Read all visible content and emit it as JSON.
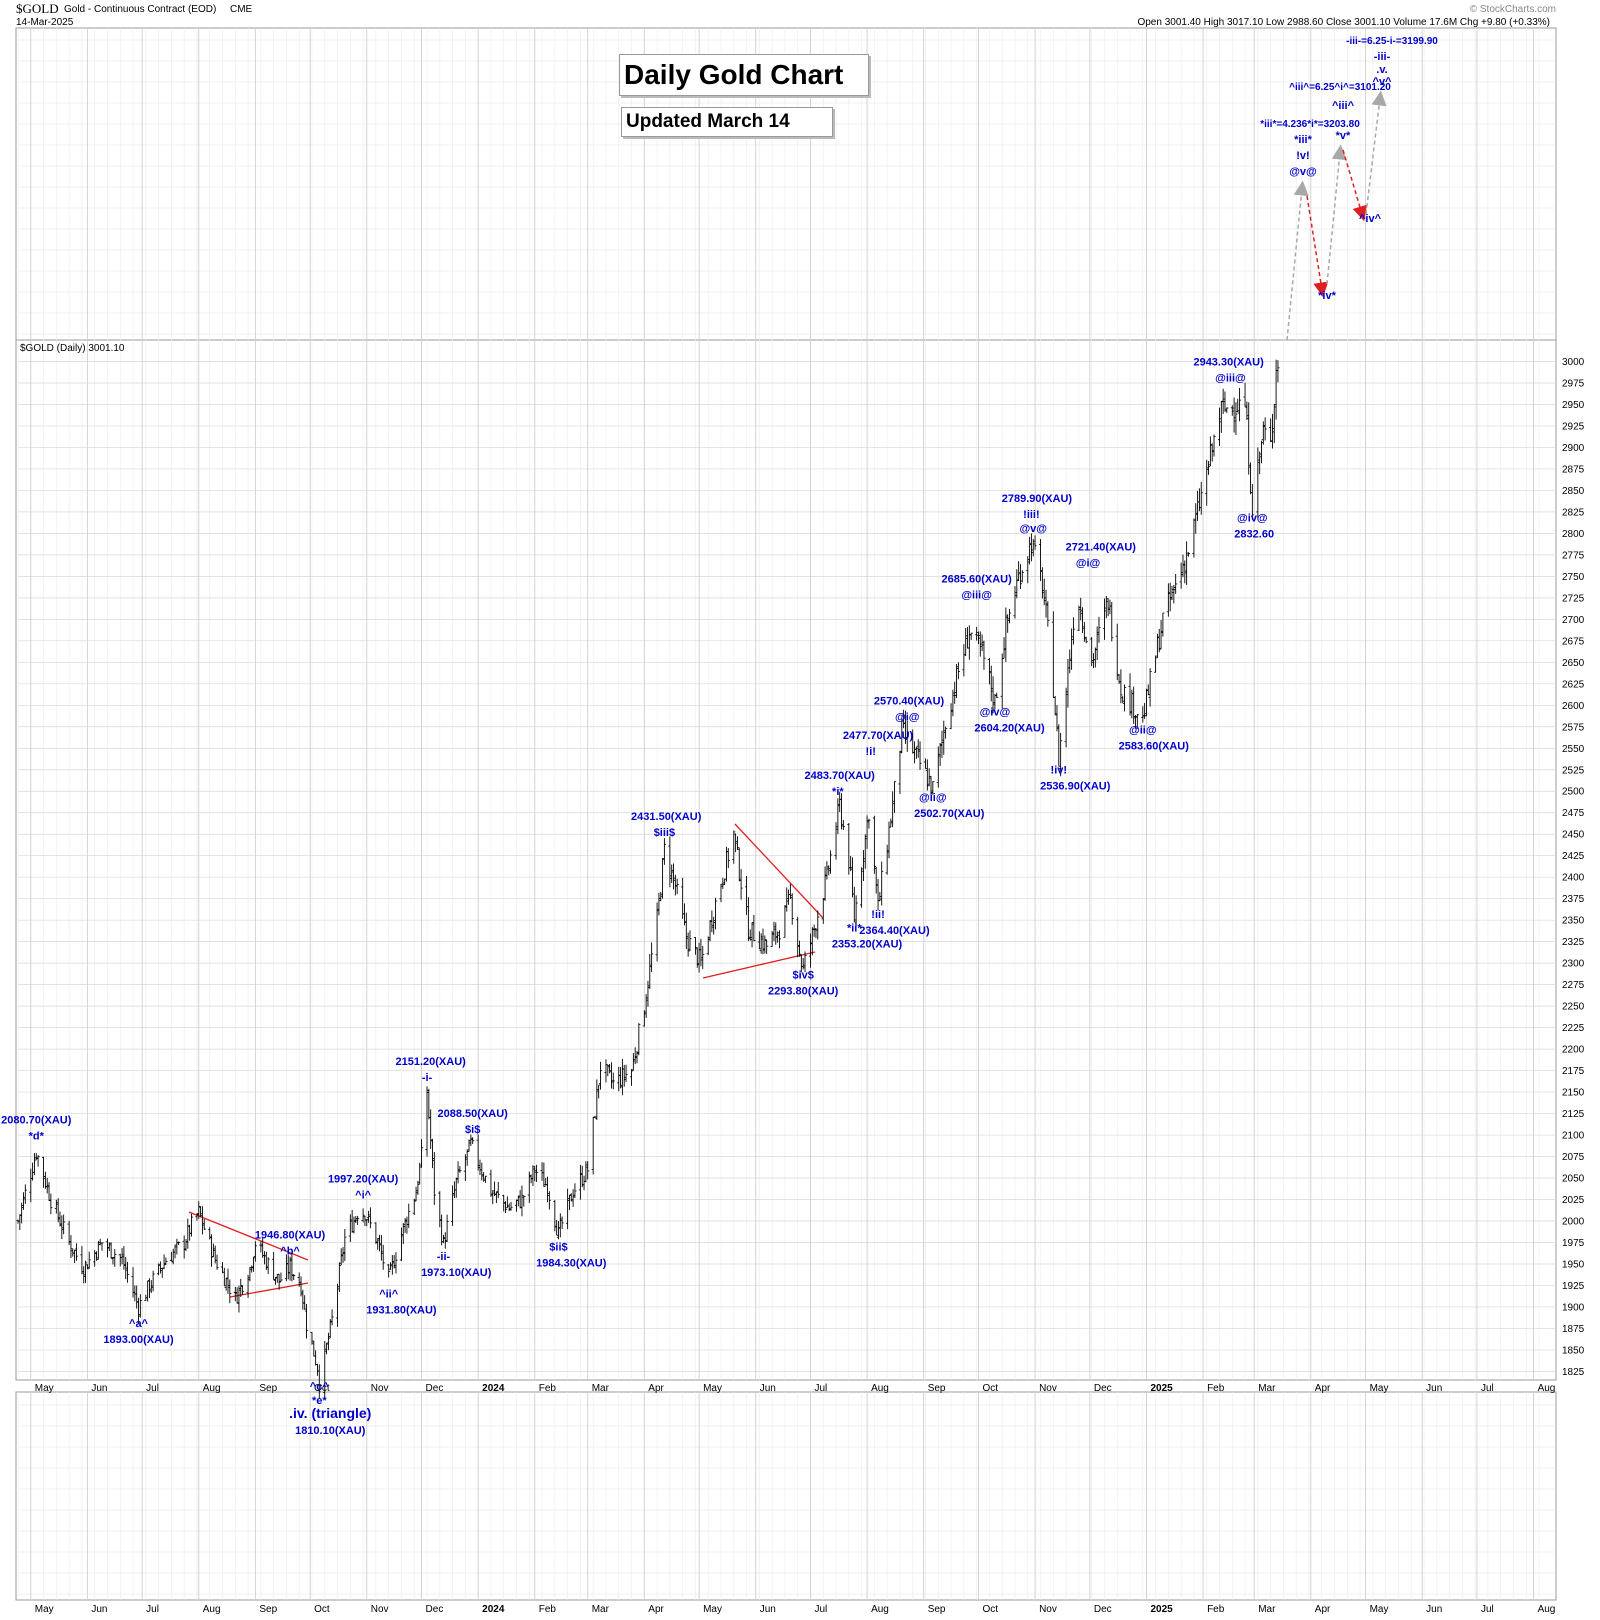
{
  "header": {
    "symbol": "$GOLD",
    "description": "Gold - Continuous Contract (EOD)",
    "exchange": "CME",
    "date": "14-Mar-2025",
    "ohlc_line": "Open 3001.40  High 3017.10  Low 2988.60  Close 3001.10  Volume 17.6M  Chg +9.80 (+0.33%)",
    "watermark": "© StockCharts.com",
    "legend": "$GOLD (Daily) 3001.10"
  },
  "title_box": {
    "title": "Daily Gold Chart",
    "subtitle": "Updated March 14"
  },
  "colors": {
    "annotation": "#0000cc",
    "bars": "#000000",
    "trendline": "#e02020",
    "projection_up": "#a8a8a8",
    "projection_down": "#e02020",
    "grid": "#d8d8d8"
  },
  "chart_data": {
    "type": "ohlc",
    "title": "Daily Gold Chart",
    "subtitle": "Updated March 14",
    "series_name": "$GOLD (Daily)",
    "last_close": 3001.1,
    "ylim": [
      1815,
      3025
    ],
    "y_ticks": [
      1825,
      1850,
      1875,
      1900,
      1925,
      1950,
      1975,
      2000,
      2025,
      2050,
      2075,
      2100,
      2125,
      2150,
      2175,
      2200,
      2225,
      2250,
      2275,
      2300,
      2325,
      2350,
      2375,
      2400,
      2425,
      2450,
      2475,
      2500,
      2525,
      2550,
      2575,
      2600,
      2625,
      2650,
      2675,
      2700,
      2725,
      2750,
      2775,
      2800,
      2825,
      2850,
      2875,
      2900,
      2925,
      2950,
      2975,
      3000
    ],
    "x_range": [
      "2023-04-24",
      "2025-08-10"
    ],
    "x_ticks": [
      {
        "label": "May",
        "date": "2023-05-01"
      },
      {
        "label": "Jun",
        "date": "2023-06-01"
      },
      {
        "label": "Jul",
        "date": "2023-07-01"
      },
      {
        "label": "Aug",
        "date": "2023-08-01"
      },
      {
        "label": "Sep",
        "date": "2023-09-01"
      },
      {
        "label": "Oct",
        "date": "2023-10-01"
      },
      {
        "label": "Nov",
        "date": "2023-11-01"
      },
      {
        "label": "Dec",
        "date": "2023-12-01"
      },
      {
        "label": "2024",
        "date": "2024-01-01",
        "bold": true
      },
      {
        "label": "Feb",
        "date": "2024-02-01"
      },
      {
        "label": "Mar",
        "date": "2024-03-01"
      },
      {
        "label": "Apr",
        "date": "2024-04-01"
      },
      {
        "label": "May",
        "date": "2024-05-01"
      },
      {
        "label": "Jun",
        "date": "2024-06-01"
      },
      {
        "label": "Jul",
        "date": "2024-07-01"
      },
      {
        "label": "Aug",
        "date": "2024-08-01"
      },
      {
        "label": "Sep",
        "date": "2024-09-01"
      },
      {
        "label": "Oct",
        "date": "2024-10-01"
      },
      {
        "label": "Nov",
        "date": "2024-11-01"
      },
      {
        "label": "Dec",
        "date": "2024-12-01"
      },
      {
        "label": "2025",
        "date": "2025-01-01",
        "bold": true
      },
      {
        "label": "Feb",
        "date": "2025-02-01"
      },
      {
        "label": "Mar",
        "date": "2025-03-01"
      },
      {
        "label": "Apr",
        "date": "2025-04-01"
      },
      {
        "label": "May",
        "date": "2025-05-01"
      },
      {
        "label": "Jun",
        "date": "2025-06-01"
      },
      {
        "label": "Jul",
        "date": "2025-07-01"
      },
      {
        "label": "Aug",
        "date": "2025-08-01"
      }
    ],
    "price_path": [
      [
        "2023-04-24",
        2000
      ],
      [
        "2023-05-04",
        2080.7
      ],
      [
        "2023-05-12",
        2025
      ],
      [
        "2023-05-22",
        1975
      ],
      [
        "2023-05-30",
        1945
      ],
      [
        "2023-06-09",
        1975
      ],
      [
        "2023-06-20",
        1955
      ],
      [
        "2023-06-29",
        1900
      ],
      [
        "2023-07-05",
        1925
      ],
      [
        "2023-07-14",
        1955
      ],
      [
        "2023-07-24",
        1975
      ],
      [
        "2023-07-28",
        1995
      ],
      [
        "2023-08-01",
        2010
      ],
      [
        "2023-08-10",
        1955
      ],
      [
        "2023-08-21",
        1910
      ],
      [
        "2023-08-29",
        1945
      ],
      [
        "2023-09-01",
        1975
      ],
      [
        "2023-09-08",
        1950
      ],
      [
        "2023-09-14",
        1930
      ],
      [
        "2023-09-20",
        1946.8
      ],
      [
        "2023-09-26",
        1925
      ],
      [
        "2023-09-29",
        1880
      ],
      [
        "2023-10-05",
        1830
      ],
      [
        "2023-10-06",
        1810.1
      ],
      [
        "2023-10-13",
        1885
      ],
      [
        "2023-10-20",
        1980
      ],
      [
        "2023-10-27",
        2010
      ],
      [
        "2023-10-31",
        2010
      ],
      [
        "2023-11-07",
        1975
      ],
      [
        "2023-11-13",
        1931.8
      ],
      [
        "2023-11-20",
        1985
      ],
      [
        "2023-11-28",
        2035
      ],
      [
        "2023-12-01",
        2075
      ],
      [
        "2023-12-04",
        2151.2
      ],
      [
        "2023-12-08",
        2035
      ],
      [
        "2023-12-13",
        1973.1
      ],
      [
        "2023-12-20",
        2045
      ],
      [
        "2023-12-28",
        2088.5
      ],
      [
        "2024-01-08",
        2035
      ],
      [
        "2024-01-18",
        2015
      ],
      [
        "2024-01-25",
        2025
      ],
      [
        "2024-02-01",
        2060
      ],
      [
        "2024-02-08",
        2040
      ],
      [
        "2024-02-14",
        1984.3
      ],
      [
        "2024-02-22",
        2035
      ],
      [
        "2024-03-01",
        2060
      ],
      [
        "2024-03-08",
        2180
      ],
      [
        "2024-03-15",
        2160
      ],
      [
        "2024-03-25",
        2175
      ],
      [
        "2024-04-01",
        2250
      ],
      [
        "2024-04-08",
        2350
      ],
      [
        "2024-04-12",
        2431.5
      ],
      [
        "2024-04-18",
        2390
      ],
      [
        "2024-04-24",
        2330
      ],
      [
        "2024-05-02",
        2300
      ],
      [
        "2024-05-10",
        2370
      ],
      [
        "2024-05-20",
        2450
      ],
      [
        "2024-05-28",
        2340
      ],
      [
        "2024-06-07",
        2320
      ],
      [
        "2024-06-14",
        2340
      ],
      [
        "2024-06-20",
        2375
      ],
      [
        "2024-06-26",
        2300
      ],
      [
        "2024-06-27",
        2293.8
      ],
      [
        "2024-07-03",
        2340
      ],
      [
        "2024-07-10",
        2400
      ],
      [
        "2024-07-17",
        2483.7
      ],
      [
        "2024-07-22",
        2420
      ],
      [
        "2024-07-25",
        2353.2
      ],
      [
        "2024-08-02",
        2477.7
      ],
      [
        "2024-08-07",
        2364.4
      ],
      [
        "2024-08-16",
        2500
      ],
      [
        "2024-08-20",
        2570.4
      ],
      [
        "2024-08-28",
        2540
      ],
      [
        "2024-09-06",
        2502.7
      ],
      [
        "2024-09-13",
        2580
      ],
      [
        "2024-09-20",
        2640
      ],
      [
        "2024-09-26",
        2685.6
      ],
      [
        "2024-10-03",
        2660
      ],
      [
        "2024-10-10",
        2604.2
      ],
      [
        "2024-10-16",
        2690
      ],
      [
        "2024-10-23",
        2750
      ],
      [
        "2024-10-30",
        2789.9
      ],
      [
        "2024-11-05",
        2740
      ],
      [
        "2024-11-10",
        2650
      ],
      [
        "2024-11-14",
        2536.9
      ],
      [
        "2024-11-22",
        2700
      ],
      [
        "2024-11-25",
        2721.4
      ],
      [
        "2024-12-02",
        2650
      ],
      [
        "2024-12-11",
        2721.4
      ],
      [
        "2024-12-18",
        2620
      ],
      [
        "2024-12-30",
        2583.6
      ],
      [
        "2025-01-10",
        2700
      ],
      [
        "2025-01-24",
        2780
      ],
      [
        "2025-02-04",
        2880
      ],
      [
        "2025-02-11",
        2943.3
      ],
      [
        "2025-02-20",
        2950
      ],
      [
        "2025-02-24",
        2950
      ],
      [
        "2025-02-28",
        2832.6
      ],
      [
        "2025-03-06",
        2920
      ],
      [
        "2025-03-10",
        2900
      ],
      [
        "2025-03-13",
        2990
      ],
      [
        "2025-03-14",
        3001.1
      ]
    ],
    "annotations": [
      {
        "text": "2080.70(XAU)",
        "date": "2023-05-04",
        "price": 2080.7,
        "dy": -28
      },
      {
        "text": "*d*",
        "date": "2023-05-04",
        "price": 2080.7,
        "dy": -12
      },
      {
        "text": "^a^",
        "date": "2023-06-29",
        "price": 1893,
        "dy": 14
      },
      {
        "text": "1893.00(XAU)",
        "date": "2023-06-29",
        "price": 1893,
        "dy": 30
      },
      {
        "text": "1946.80(XAU)",
        "date": "2023-09-20",
        "price": 1946.8,
        "dy": -28
      },
      {
        "text": "^b^",
        "date": "2023-09-20",
        "price": 1946.8,
        "dy": -12
      },
      {
        "text": "^c^",
        "date": "2023-10-06",
        "price": 1810.1,
        "dy": 6
      },
      {
        "text": "*e*",
        "date": "2023-10-06",
        "price": 1810.1,
        "dy": 20
      },
      {
        "text": ".iv. (triangle)",
        "date": "2023-10-12",
        "price": 1810.1,
        "dy": 34,
        "big": true
      },
      {
        "text": "1810.10(XAU)",
        "date": "2023-10-12",
        "price": 1810.1,
        "dy": 50
      },
      {
        "text": "1997.20(XAU)",
        "date": "2023-10-30",
        "price": 2010,
        "dy": -30
      },
      {
        "text": "^i^",
        "date": "2023-10-30",
        "price": 2010,
        "dy": -14
      },
      {
        "text": "^ii^",
        "date": "2023-11-13",
        "price": 1931.8,
        "dy": 18
      },
      {
        "text": "1931.80(XAU)",
        "date": "2023-11-20",
        "price": 1931.8,
        "dy": 34
      },
      {
        "text": "2151.20(XAU)",
        "date": "2023-12-06",
        "price": 2151.2,
        "dy": -26
      },
      {
        "text": "-i-",
        "date": "2023-12-04",
        "price": 2151.2,
        "dy": -10
      },
      {
        "text": "-ii-",
        "date": "2023-12-13",
        "price": 1973.1,
        "dy": 16
      },
      {
        "text": "1973.10(XAU)",
        "date": "2023-12-20",
        "price": 1973.1,
        "dy": 32
      },
      {
        "text": "2088.50(XAU)",
        "date": "2023-12-29",
        "price": 2088.5,
        "dy": -28
      },
      {
        "text": "$i$",
        "date": "2023-12-29",
        "price": 2088.5,
        "dy": -12
      },
      {
        "text": "$ii$",
        "date": "2024-02-14",
        "price": 1984.3,
        "dy": 16
      },
      {
        "text": "1984.30(XAU)",
        "date": "2024-02-21",
        "price": 1984.3,
        "dy": 32
      },
      {
        "text": "2431.50(XAU)",
        "date": "2024-04-13",
        "price": 2431.5,
        "dy": -30
      },
      {
        "text": "$iii$",
        "date": "2024-04-12",
        "price": 2431.5,
        "dy": -14
      },
      {
        "text": "$iv$",
        "date": "2024-06-27",
        "price": 2293.8,
        "dy": 10
      },
      {
        "text": "2293.80(XAU)",
        "date": "2024-06-27",
        "price": 2293.8,
        "dy": 26
      },
      {
        "text": "2483.70(XAU)",
        "date": "2024-07-17",
        "price": 2483.7,
        "dy": -26
      },
      {
        "text": "*i*",
        "date": "2024-07-16",
        "price": 2483.7,
        "dy": -10
      },
      {
        "text": "2477.70(XAU)",
        "date": "2024-08-07",
        "price": 2500,
        "dy": -52
      },
      {
        "text": "!i!",
        "date": "2024-08-03",
        "price": 2500,
        "dy": -36
      },
      {
        "text": "!ii!",
        "date": "2024-08-07",
        "price": 2364.4,
        "dy": 10
      },
      {
        "text": "2364.40(XAU)",
        "date": "2024-08-16",
        "price": 2364.4,
        "dy": 26
      },
      {
        "text": "*ii*",
        "date": "2024-07-25",
        "price": 2353.2,
        "dy": 14
      },
      {
        "text": "2353.20(XAU)",
        "date": "2024-08-01",
        "price": 2353.2,
        "dy": 30
      },
      {
        "text": "2570.40(XAU)",
        "date": "2024-08-24",
        "price": 2570.4,
        "dy": -26
      },
      {
        "text": "@i@",
        "date": "2024-08-23",
        "price": 2570.4,
        "dy": -10
      },
      {
        "text": "@ii@",
        "date": "2024-09-06",
        "price": 2502.7,
        "dy": 12
      },
      {
        "text": "2502.70(XAU)",
        "date": "2024-09-15",
        "price": 2502.7,
        "dy": 28
      },
      {
        "text": "2685.60(XAU)",
        "date": "2024-09-30",
        "price": 2710,
        "dy": -28
      },
      {
        "text": "@iii@",
        "date": "2024-09-30",
        "price": 2710,
        "dy": -12
      },
      {
        "text": "@iv@",
        "date": "2024-10-10",
        "price": 2604.2,
        "dy": 14
      },
      {
        "text": "2604.20(XAU)",
        "date": "2024-10-18",
        "price": 2604.2,
        "dy": 30
      },
      {
        "text": "2789.90(XAU)",
        "date": "2024-11-02",
        "price": 2789.9,
        "dy": -40
      },
      {
        "text": "!iii!",
        "date": "2024-10-30",
        "price": 2789.9,
        "dy": -24
      },
      {
        "text": "@v@",
        "date": "2024-10-31",
        "price": 2789.9,
        "dy": -10
      },
      {
        "text": "!iv!",
        "date": "2024-11-14",
        "price": 2536.9,
        "dy": 14
      },
      {
        "text": "2536.90(XAU)",
        "date": "2024-11-23",
        "price": 2536.9,
        "dy": 30
      },
      {
        "text": "2721.40(XAU)",
        "date": "2024-12-07",
        "price": 2750,
        "dy": -26
      },
      {
        "text": "@i@",
        "date": "2024-11-30",
        "price": 2750,
        "dy": -10
      },
      {
        "text": "@ii@",
        "date": "2024-12-30",
        "price": 2583.6,
        "dy": 14
      },
      {
        "text": "2583.60(XAU)",
        "date": "2025-01-05",
        "price": 2583.6,
        "dy": 30
      },
      {
        "text": "2943.30(XAU)",
        "date": "2025-02-15",
        "price": 2965,
        "dy": -26
      },
      {
        "text": "@iii@",
        "date": "2025-02-16",
        "price": 2965,
        "dy": -10
      },
      {
        "text": "@iv@",
        "date": "2025-02-28",
        "price": 2832.6,
        "dy": 16
      },
      {
        "text": "2832.60",
        "date": "2025-03-01",
        "price": 2832.6,
        "dy": 32
      }
    ],
    "projections": [
      {
        "text": "-iii-=6.25-i-=3199.90"
      },
      {
        "text": "-iii-"
      },
      {
        "text": ".v."
      },
      {
        "text": "^v^"
      },
      {
        "text": "^iii^=6.25^i^=3101.20"
      },
      {
        "text": "^iii^"
      },
      {
        "text": "*iii*=4.236*i*=3203.80"
      },
      {
        "text": "*iii*"
      },
      {
        "text": "!v!"
      },
      {
        "text": "@v@"
      },
      {
        "text": "*iv*"
      },
      {
        "text": "*v*"
      },
      {
        "text": "^iv^"
      }
    ]
  }
}
